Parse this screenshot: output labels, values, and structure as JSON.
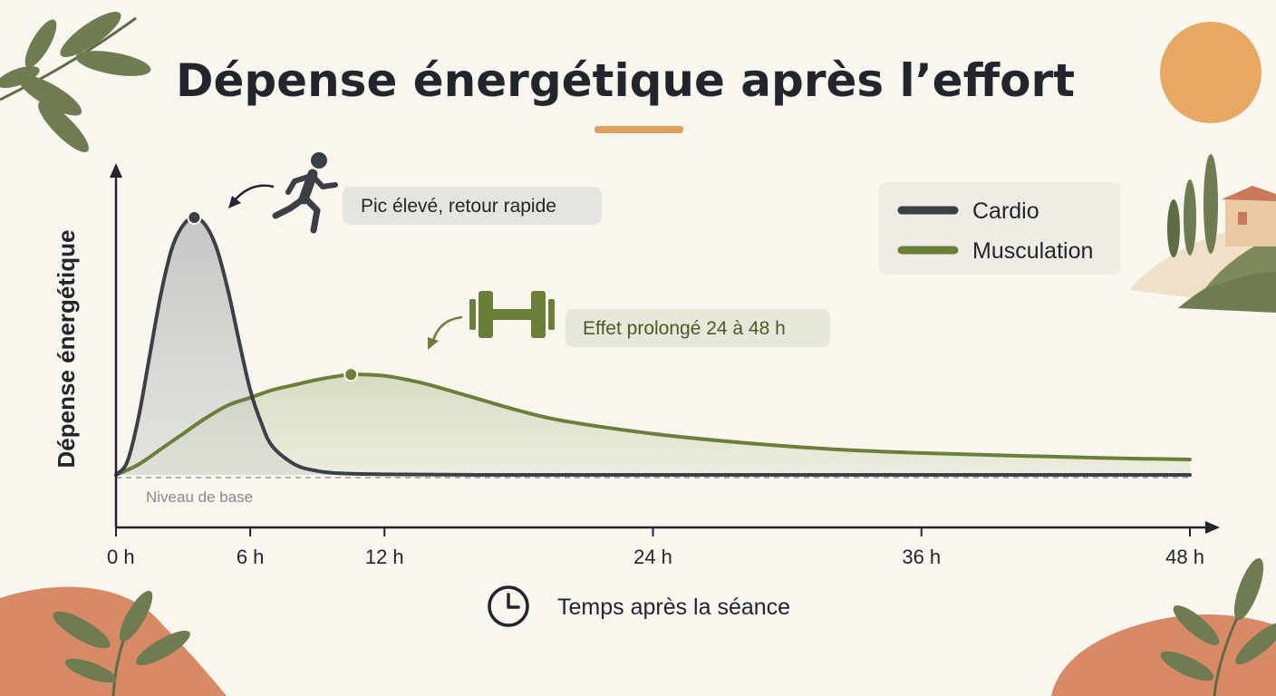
{
  "colors": {
    "background": "#f8f6ef",
    "cardio": "#3c3f46",
    "muscu": "#6b7f3a",
    "accent": "#e0a262",
    "terracotta": "#d88a67",
    "leaf": "#6f7c52"
  },
  "chart_data": {
    "type": "line",
    "title": "Dépense énergétique après l’effort",
    "xlabel": "Temps après la séance",
    "ylabel": "Dépense énergétique",
    "xlim": [
      0,
      48
    ],
    "x_ticks": [
      {
        "value": 0,
        "label": "0 h"
      },
      {
        "value": 6,
        "label": "6 h"
      },
      {
        "value": 12,
        "label": "12 h"
      },
      {
        "value": 24,
        "label": "24 h"
      },
      {
        "value": 36,
        "label": "36 h"
      },
      {
        "value": 48,
        "label": "48 h"
      }
    ],
    "baseline_label": "Niveau de base",
    "legend_position": "top-right",
    "series": [
      {
        "name": "Cardio",
        "color": "#3c3f46",
        "points": [
          [
            0,
            0
          ],
          [
            0.5,
            0.05
          ],
          [
            1,
            0.22
          ],
          [
            1.5,
            0.46
          ],
          [
            2,
            0.7
          ],
          [
            2.5,
            0.88
          ],
          [
            3,
            0.97
          ],
          [
            3.5,
            1.0
          ],
          [
            4,
            0.97
          ],
          [
            4.5,
            0.88
          ],
          [
            5,
            0.72
          ],
          [
            5.5,
            0.52
          ],
          [
            6,
            0.33
          ],
          [
            6.5,
            0.2
          ],
          [
            7,
            0.11
          ],
          [
            8,
            0.04
          ],
          [
            9,
            0.015
          ],
          [
            10,
            0.006
          ],
          [
            12,
            0.002
          ],
          [
            16,
            0
          ],
          [
            24,
            0
          ],
          [
            36,
            0
          ],
          [
            48,
            0
          ]
        ]
      },
      {
        "name": "Musculation",
        "color": "#6b7f3a",
        "points": [
          [
            0,
            0
          ],
          [
            1,
            0.04
          ],
          [
            2,
            0.1
          ],
          [
            3,
            0.16
          ],
          [
            4,
            0.22
          ],
          [
            5,
            0.27
          ],
          [
            6,
            0.3
          ],
          [
            7,
            0.33
          ],
          [
            8,
            0.35
          ],
          [
            9,
            0.37
          ],
          [
            10,
            0.385
          ],
          [
            10.5,
            0.39
          ],
          [
            11,
            0.39
          ],
          [
            12,
            0.385
          ],
          [
            13,
            0.37
          ],
          [
            14,
            0.35
          ],
          [
            16,
            0.3
          ],
          [
            18,
            0.25
          ],
          [
            20,
            0.21
          ],
          [
            24,
            0.16
          ],
          [
            28,
            0.125
          ],
          [
            32,
            0.1
          ],
          [
            36,
            0.085
          ],
          [
            40,
            0.075
          ],
          [
            44,
            0.066
          ],
          [
            48,
            0.06
          ]
        ]
      }
    ],
    "annotations": [
      {
        "series": "Cardio",
        "x": 3.5,
        "y": 1.0,
        "text": "Pic élevé, retour rapide"
      },
      {
        "series": "Musculation",
        "x": 10.5,
        "y": 0.39,
        "text": "Effet prolongé 24 à 48 h"
      }
    ]
  },
  "icons": {
    "runner": "runner-icon",
    "dumbbell": "dumbbell-icon",
    "clock": "clock-icon",
    "sun": "sun-decoration",
    "leaves": "leaf-decoration",
    "village": "hill-village-decoration"
  }
}
